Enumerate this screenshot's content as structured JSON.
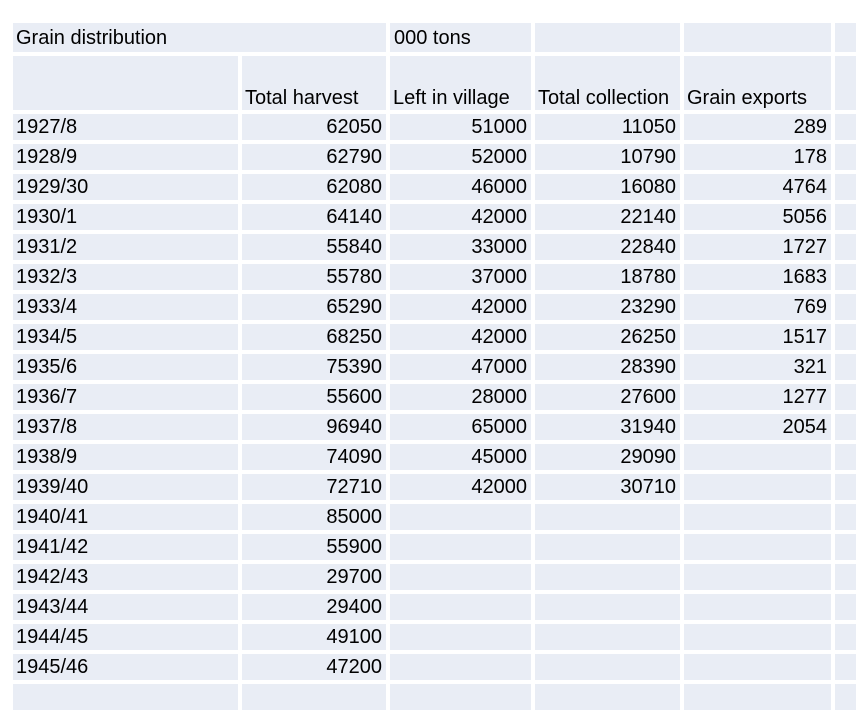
{
  "colors": {
    "page_background": "#ffffff",
    "cell_fill": "#e9edf5",
    "gridline": "#ffffff",
    "text": "#000000"
  },
  "table": {
    "title": "Grain distribution",
    "units_label": "000 tons",
    "col_headers": [
      "",
      "Total harvest",
      "Left in village",
      "Total collection",
      "Grain exports"
    ]
  },
  "chart_data": {
    "type": "table",
    "title": "Grain distribution",
    "units": "000 tons",
    "columns": [
      "",
      "Total harvest",
      "Left in village",
      "Total collection",
      "Grain exports"
    ],
    "rows": [
      [
        "1927/8",
        "62050",
        "51000",
        "11050",
        "289"
      ],
      [
        "1928/9",
        "62790",
        "52000",
        "10790",
        "178"
      ],
      [
        "1929/30",
        "62080",
        "46000",
        "16080",
        "4764"
      ],
      [
        "1930/1",
        "64140",
        "42000",
        "22140",
        "5056"
      ],
      [
        "1931/2",
        "55840",
        "33000",
        "22840",
        "1727"
      ],
      [
        "1932/3",
        "55780",
        "37000",
        "18780",
        "1683"
      ],
      [
        "1933/4",
        "65290",
        "42000",
        "23290",
        "769"
      ],
      [
        "1934/5",
        "68250",
        "42000",
        "26250",
        "1517"
      ],
      [
        "1935/6",
        "75390",
        "47000",
        "28390",
        "321"
      ],
      [
        "1936/7",
        "55600",
        "28000",
        "27600",
        "1277"
      ],
      [
        "1937/8",
        "96940",
        "65000",
        "31940",
        "2054"
      ],
      [
        "1938/9",
        "74090",
        "45000",
        "29090",
        ""
      ],
      [
        "1939/40",
        "72710",
        "42000",
        "30710",
        ""
      ],
      [
        "1940/41",
        "85000",
        "",
        "",
        ""
      ],
      [
        "1941/42",
        "55900",
        "",
        "",
        ""
      ],
      [
        "1942/43",
        "29700",
        "",
        "",
        ""
      ],
      [
        "1943/44",
        "29400",
        "",
        "",
        ""
      ],
      [
        "1944/45",
        "49100",
        "",
        "",
        ""
      ],
      [
        "1945/46",
        "47200",
        "",
        "",
        ""
      ],
      [
        "",
        "",
        "",
        "",
        ""
      ]
    ]
  }
}
